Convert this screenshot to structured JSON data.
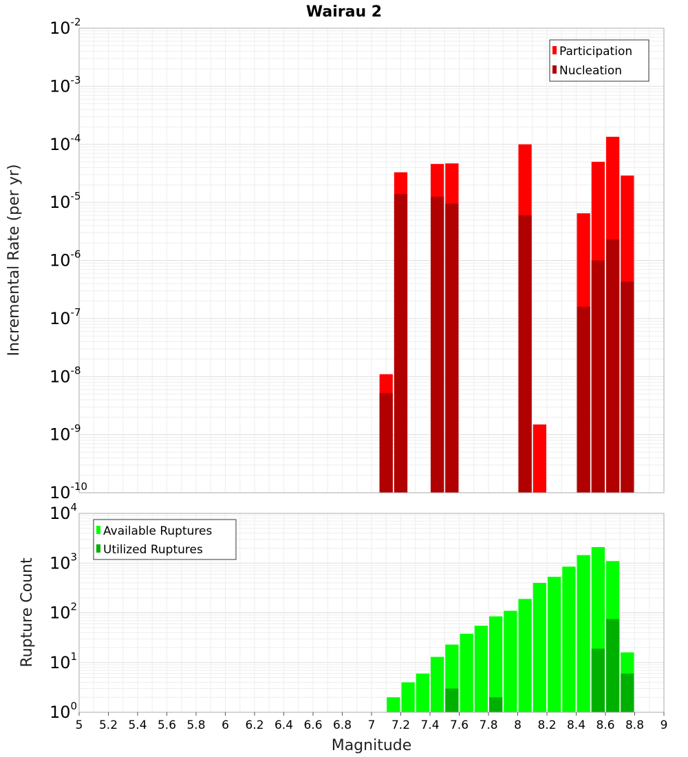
{
  "chart_data": [
    {
      "type": "bar",
      "title": "Wairau 2",
      "ylabel": "Incremental Rate (per yr)",
      "yscale": "log",
      "ylim": [
        1e-10,
        0.01
      ],
      "xlim": [
        5,
        9
      ],
      "grid": true,
      "legend_position": "top-right",
      "y_tick_labels": [
        {
          "base": "10",
          "exp": "-2"
        },
        {
          "base": "10",
          "exp": "-3"
        },
        {
          "base": "10",
          "exp": "-4"
        },
        {
          "base": "10",
          "exp": "-5"
        },
        {
          "base": "10",
          "exp": "-6"
        },
        {
          "base": "10",
          "exp": "-7"
        },
        {
          "base": "10",
          "exp": "-8"
        },
        {
          "base": "10",
          "exp": "-9"
        },
        {
          "base": "10",
          "exp": "-10"
        }
      ],
      "series": [
        {
          "name": "Participation",
          "color": "#ff0000",
          "x": [
            7.1,
            7.2,
            7.45,
            7.55,
            8.05,
            8.15,
            8.45,
            8.55,
            8.65,
            8.75
          ],
          "values": [
            1.1e-08,
            3.3e-05,
            4.6e-05,
            4.7e-05,
            0.0001,
            1.5e-09,
            6.5e-06,
            5e-05,
            0.000135,
            2.9e-05
          ]
        },
        {
          "name": "Nucleation",
          "color": "#b00000",
          "x": [
            7.1,
            7.2,
            7.45,
            7.55,
            8.05,
            8.45,
            8.55,
            8.65,
            8.75
          ],
          "values": [
            5.2e-09,
            1.4e-05,
            1.25e-05,
            9.5e-06,
            6e-06,
            1.6e-07,
            1e-06,
            2.3e-06,
            4.3e-07
          ]
        }
      ]
    },
    {
      "type": "bar",
      "xlabel": "Magnitude",
      "ylabel": "Rupture Count",
      "yscale": "log",
      "ylim": [
        1,
        10000
      ],
      "xlim": [
        5,
        9
      ],
      "grid": true,
      "legend_position": "top-left",
      "y_tick_labels": [
        {
          "base": "10",
          "exp": "4"
        },
        {
          "base": "10",
          "exp": "3"
        },
        {
          "base": "10",
          "exp": "2"
        },
        {
          "base": "10",
          "exp": "1"
        },
        {
          "base": "10",
          "exp": "0"
        }
      ],
      "x_tick_labels": [
        "5",
        "5.2",
        "5.4",
        "5.6",
        "5.8",
        "6",
        "6.2",
        "6.4",
        "6.6",
        "6.8",
        "7",
        "7.2",
        "7.4",
        "7.6",
        "7.8",
        "8",
        "8.2",
        "8.4",
        "8.6",
        "8.8",
        "9"
      ],
      "series": [
        {
          "name": "Available Ruptures",
          "color": "#00ff00",
          "x": [
            6.85,
            7.05,
            7.15,
            7.25,
            7.35,
            7.45,
            7.55,
            7.65,
            7.75,
            7.85,
            7.95,
            8.05,
            8.15,
            8.25,
            8.35,
            8.45,
            8.55,
            8.65,
            8.75
          ],
          "values": [
            1,
            1,
            2,
            4,
            6,
            13,
            23,
            38,
            55,
            85,
            110,
            190,
            400,
            530,
            850,
            1450,
            2100,
            1100,
            16
          ]
        },
        {
          "name": "Utilized Ruptures",
          "color": "#00b000",
          "x": [
            7.15,
            7.25,
            7.45,
            7.55,
            7.85,
            8.05,
            8.15,
            8.45,
            8.55,
            8.65,
            8.75
          ],
          "values": [
            1,
            1,
            1,
            3,
            2,
            1,
            1,
            1,
            19,
            75,
            6
          ]
        }
      ]
    }
  ]
}
